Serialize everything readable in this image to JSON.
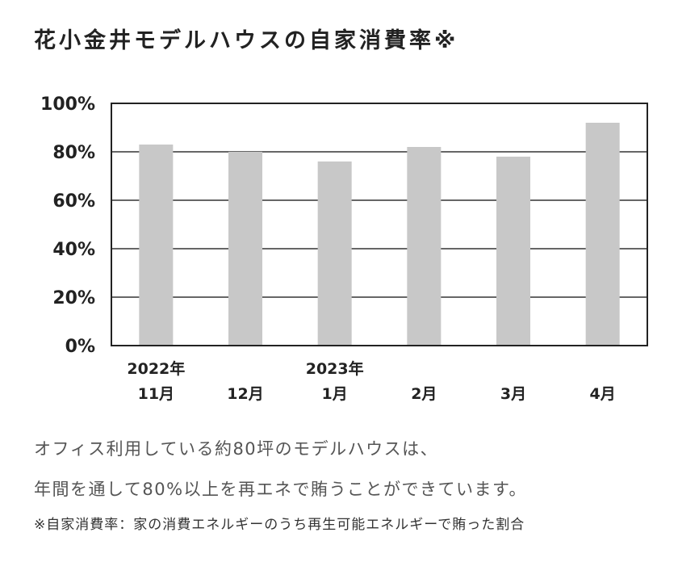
{
  "title": "花小金井モデルハウスの自家消費率※",
  "description": [
    "オフィス利用している約80坪のモデルハウスは、",
    "年間を通して80%以上を再エネで賄うことができています。"
  ],
  "footnote": "※自家消費率：家の消費エネルギーのうち再生可能エネルギーで賄った割合",
  "chart_data": {
    "type": "bar",
    "categories": [
      [
        "2022年",
        "11月"
      ],
      [
        "",
        "12月"
      ],
      [
        "2023年",
        "1月"
      ],
      [
        "",
        "2月"
      ],
      [
        "",
        "3月"
      ],
      [
        "",
        "4月"
      ]
    ],
    "values": [
      83,
      80,
      76,
      82,
      78,
      92
    ],
    "ylim": [
      0,
      100
    ],
    "yticks": [
      0,
      20,
      40,
      60,
      80,
      100
    ],
    "ytick_labels": [
      "0%",
      "20%",
      "40%",
      "60%",
      "80%",
      "100%"
    ],
    "grid": true,
    "bar_color": "#c8c8c8",
    "frame_color": "#222222"
  }
}
